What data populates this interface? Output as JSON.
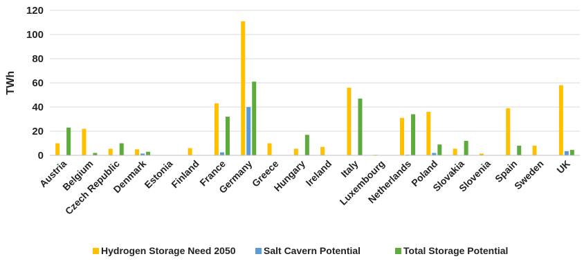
{
  "chart_data": {
    "type": "bar",
    "ylabel": "TWh",
    "xlabel": "",
    "ylim": [
      0,
      120
    ],
    "yticks": [
      0,
      20,
      40,
      60,
      80,
      100,
      120
    ],
    "grid": true,
    "legend_position": "bottom",
    "categories": [
      "Austria",
      "Belgium",
      "Czech Republic",
      "Denmark",
      "Estonia",
      "Finland",
      "France",
      "Germany",
      "Greece",
      "Hungary",
      "Ireland",
      "Italy",
      "Luxembourg",
      "Netherlands",
      "Poland",
      "Slovakia",
      "Slovenia",
      "Spain",
      "Sweden",
      "UK"
    ],
    "series": [
      {
        "name": "Hydrogen Storage Need 2050",
        "color": "#FFC000",
        "values": [
          10,
          22,
          5.5,
          5,
          0,
          6,
          43,
          111,
          10,
          5.5,
          7,
          56,
          0.5,
          31,
          36,
          5.5,
          1.5,
          39,
          8,
          58
        ]
      },
      {
        "name": "Salt Cavern Potential",
        "color": "#5B9BD5",
        "values": [
          0,
          0,
          0,
          1.5,
          0,
          0,
          2.5,
          40,
          0,
          0,
          0,
          0,
          0,
          0.5,
          2,
          0,
          0,
          0,
          0,
          3.5
        ]
      },
      {
        "name": "Total Storage Potential",
        "color": "#5DAB3C",
        "values": [
          23,
          2,
          10,
          3,
          0,
          0,
          32,
          61,
          0,
          17,
          0,
          47,
          0,
          34,
          9,
          12,
          0,
          8,
          0,
          4.5
        ]
      }
    ]
  }
}
